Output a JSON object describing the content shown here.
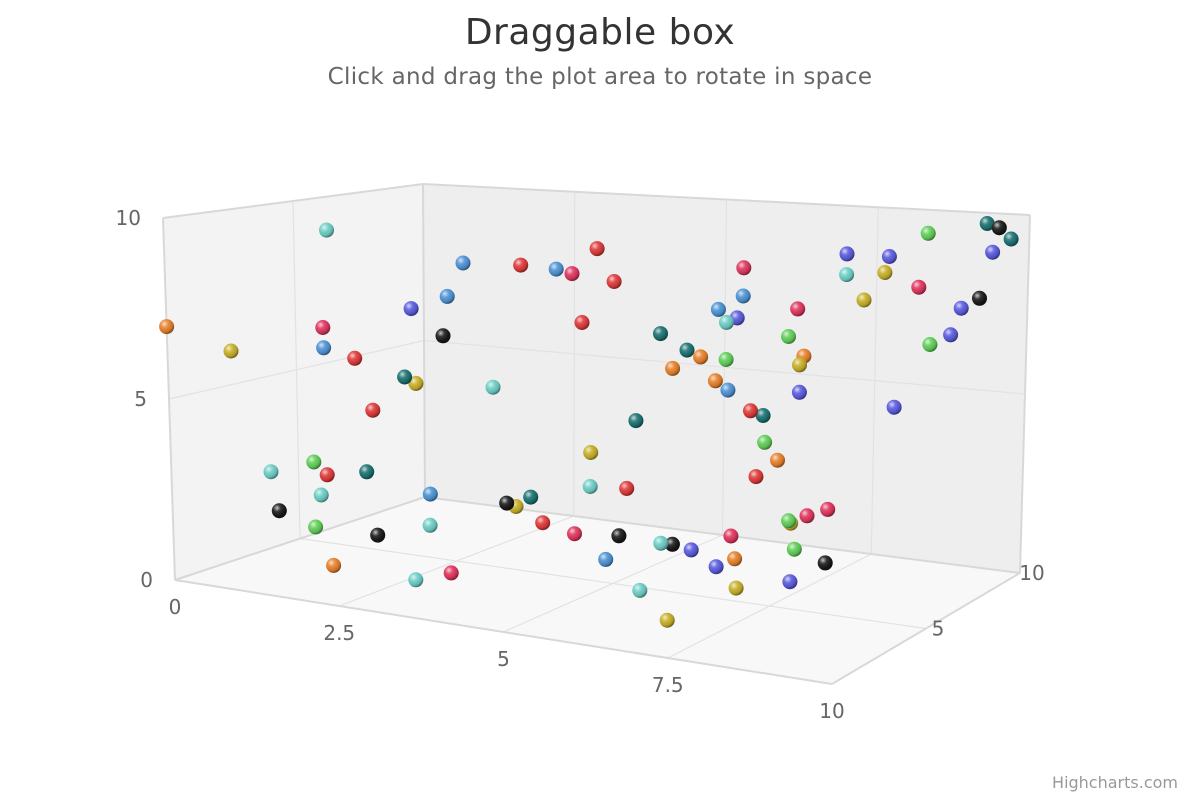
{
  "title": "Draggable box",
  "subtitle": "Click and drag the plot area to rotate in space",
  "credits": "Highcharts.com",
  "colors": {
    "panel_back": "#eeeeee",
    "panel_side": "#f3f3f3",
    "panel_floor": "#f8f8f8",
    "edge": "#d8d8d8",
    "grid": "#e2e2e2",
    "palette": [
      "#7cb5ec",
      "#434348",
      "#90ed7d",
      "#f7a35c",
      "#8085e9",
      "#f15c80",
      "#e4d354",
      "#2b908f",
      "#f45b5b",
      "#91e8e1"
    ]
  },
  "chart_data": {
    "type": "scatter",
    "dimensions": "3d",
    "title": "Draggable box",
    "subtitle": "Click and drag the plot area to rotate in space",
    "xlim": [
      0,
      10
    ],
    "ylim": [
      0,
      10
    ],
    "zlim": [
      0,
      10
    ],
    "x_ticks": [
      "0",
      "2.5",
      "5",
      "7.5",
      "10"
    ],
    "y_ticks": [
      "0",
      "5",
      "10"
    ],
    "z_ticks": [
      "5",
      "10"
    ],
    "grid": true,
    "legend": "none",
    "points": [
      {
        "x": 0,
        "y": 7,
        "z": 0,
        "color": "#e8822c"
      },
      {
        "x": 0.5,
        "y": 6.3,
        "z": 1.2,
        "color": "#c9b12a"
      },
      {
        "x": 0.6,
        "y": 9.3,
        "z": 4.8,
        "color": "#6fd0c8"
      },
      {
        "x": 1.8,
        "y": 7.3,
        "z": 1.5,
        "color": "#e0365f"
      },
      {
        "x": 1.5,
        "y": 6.5,
        "z": 2.3,
        "color": "#4f94d6"
      },
      {
        "x": 1.4,
        "y": 5.9,
        "z": 3.8,
        "color": "#e03a3a"
      },
      {
        "x": 2.1,
        "y": 5.5,
        "z": 4.0,
        "color": "#1c7272"
      },
      {
        "x": 2.2,
        "y": 5.3,
        "z": 4.2,
        "color": "#c9b12a"
      },
      {
        "x": 1.2,
        "y": 4.1,
        "z": 5.0,
        "color": "#e03a3a"
      },
      {
        "x": 1.1,
        "y": 3.1,
        "z": 1.1,
        "color": "#6fd0c8"
      },
      {
        "x": 1.4,
        "y": 2.2,
        "z": 0.6,
        "color": "#1a1a1a"
      },
      {
        "x": 1.8,
        "y": 3.6,
        "z": 1.0,
        "color": "#62d05a"
      },
      {
        "x": 2.0,
        "y": 3.3,
        "z": 1.0,
        "color": "#e03a3a"
      },
      {
        "x": 2.2,
        "y": 3.2,
        "z": 2.1,
        "color": "#1c7272"
      },
      {
        "x": 1.9,
        "y": 2.7,
        "z": 1.0,
        "color": "#6fd0c8"
      },
      {
        "x": 1.5,
        "y": 1.5,
        "z": 1.8,
        "color": "#62d05a"
      },
      {
        "x": 2.2,
        "y": 1.3,
        "z": 2.5,
        "color": "#1a1a1a"
      },
      {
        "x": 2.1,
        "y": 0.8,
        "z": 0.9,
        "color": "#e8822c"
      },
      {
        "x": 2.7,
        "y": 8.8,
        "z": 4.9,
        "color": "#4f94d6"
      },
      {
        "x": 3.0,
        "y": 8.5,
        "z": 6.5,
        "color": "#e03a3a"
      },
      {
        "x": 3.3,
        "y": 8.3,
        "z": 7.2,
        "color": "#4f94d6"
      },
      {
        "x": 3.5,
        "y": 8.7,
        "z": 8.4,
        "color": "#e03a3a"
      },
      {
        "x": 3.4,
        "y": 8.1,
        "z": 7.6,
        "color": "#e0365f"
      },
      {
        "x": 3.7,
        "y": 7.7,
        "z": 8.6,
        "color": "#e03a3a"
      },
      {
        "x": 3.6,
        "y": 6.7,
        "z": 7.5,
        "color": "#e03a3a"
      },
      {
        "x": 2.9,
        "y": 7.0,
        "z": 3.5,
        "color": "#1a1a1a"
      },
      {
        "x": 2.6,
        "y": 7.8,
        "z": 3.0,
        "color": "#5c5ce0"
      },
      {
        "x": 2.9,
        "y": 8.1,
        "z": 3.7,
        "color": "#4f94d6"
      },
      {
        "x": 3.3,
        "y": 5.4,
        "z": 4.5,
        "color": "#6fd0c8"
      },
      {
        "x": 4.0,
        "y": 3.1,
        "z": 6.8,
        "color": "#c9b12a"
      },
      {
        "x": 3.4,
        "y": 1.9,
        "z": 5.8,
        "color": "#1c7272"
      },
      {
        "x": 3.2,
        "y": 1.8,
        "z": 5.3,
        "color": "#1a1a1a"
      },
      {
        "x": 3.2,
        "y": 1.6,
        "z": 5.7,
        "color": "#c9b12a"
      },
      {
        "x": 2.7,
        "y": 2.4,
        "z": 3.4,
        "color": "#4f94d6"
      },
      {
        "x": 2.8,
        "y": 1.6,
        "z": 3.1,
        "color": "#6fd0c8"
      },
      {
        "x": 3.0,
        "y": 0.4,
        "z": 1.9,
        "color": "#6fd0c8"
      },
      {
        "x": 3.3,
        "y": 0.5,
        "z": 2.6,
        "color": "#e0365f"
      },
      {
        "x": 3.7,
        "y": 1.3,
        "z": 5.5,
        "color": "#e03a3a"
      },
      {
        "x": 4.1,
        "y": 2.2,
        "z": 6.5,
        "color": "#6fd0c8"
      },
      {
        "x": 4.4,
        "y": 3.9,
        "z": 7.7,
        "color": "#1c7272"
      },
      {
        "x": 4.1,
        "y": 1.0,
        "z": 5.8,
        "color": "#e0365f"
      },
      {
        "x": 4.4,
        "y": 2.0,
        "z": 7.3,
        "color": "#e03a3a"
      },
      {
        "x": 4.6,
        "y": 0.9,
        "z": 6.4,
        "color": "#1a1a1a"
      },
      {
        "x": 4.5,
        "y": 6.3,
        "z": 8.5,
        "color": "#1c7272"
      },
      {
        "x": 4.7,
        "y": 5.3,
        "z": 8.5,
        "color": "#e8822c"
      },
      {
        "x": 4.6,
        "y": 5.6,
        "z": 9.4,
        "color": "#1c7272"
      },
      {
        "x": 4.9,
        "y": 5.5,
        "z": 9.2,
        "color": "#e8822c"
      },
      {
        "x": 5.1,
        "y": 5.3,
        "z": 9.8,
        "color": "#62d05a"
      },
      {
        "x": 5.0,
        "y": 4.7,
        "z": 9.6,
        "color": "#e8822c"
      },
      {
        "x": 5.0,
        "y": 6.8,
        "z": 9.7,
        "color": "#4f94d6"
      },
      {
        "x": 5.2,
        "y": 6.5,
        "z": 10,
        "color": "#5c5ce0"
      },
      {
        "x": 5.3,
        "y": 8.0,
        "z": 10,
        "color": "#e0365f"
      },
      {
        "x": 5.7,
        "y": 7.5,
        "z": 8.9,
        "color": "#4f94d6"
      },
      {
        "x": 5.9,
        "y": 7.1,
        "z": 7.6,
        "color": "#6fd0c8"
      },
      {
        "x": 5.5,
        "y": 0.9,
        "z": 6.3,
        "color": "#1a1a1a"
      },
      {
        "x": 5.7,
        "y": 0.7,
        "z": 6.6,
        "color": "#5c5ce0"
      },
      {
        "x": 5.2,
        "y": 1.0,
        "z": 4.1,
        "color": "#4f94d6"
      },
      {
        "x": 5.8,
        "y": 1.4,
        "z": 4.9,
        "color": "#6fd0c8"
      },
      {
        "x": 6.1,
        "y": 1.0,
        "z": 7.3,
        "color": "#e0365f"
      },
      {
        "x": 5.8,
        "y": 2.1,
        "z": 9.3,
        "color": "#e03a3a"
      },
      {
        "x": 5.9,
        "y": 3.1,
        "z": 9.4,
        "color": "#62d05a"
      },
      {
        "x": 6.5,
        "y": 4.7,
        "z": 9.3,
        "color": "#5c5ce0"
      },
      {
        "x": 6.4,
        "y": 2.9,
        "z": 8.6,
        "color": "#e8822c"
      },
      {
        "x": 6.8,
        "y": 1.4,
        "z": 8.0,
        "color": "#62d05a"
      },
      {
        "x": 6.8,
        "y": 1.3,
        "z": 8.1,
        "color": "#c9b12a"
      },
      {
        "x": 7.0,
        "y": 1.5,
        "z": 8.3,
        "color": "#e0365f"
      },
      {
        "x": 7.1,
        "y": 1.5,
        "z": 9.0,
        "color": "#e0365f"
      },
      {
        "x": 6.9,
        "y": 0.6,
        "z": 8.0,
        "color": "#62d05a"
      },
      {
        "x": 6.3,
        "y": 0.5,
        "z": 6.9,
        "color": "#e8822c"
      },
      {
        "x": 6.0,
        "y": 0.2,
        "z": 6.9,
        "color": "#5c5ce0"
      },
      {
        "x": 5.6,
        "y": 0.1,
        "z": 4.5,
        "color": "#6fd0c8"
      },
      {
        "x": 6.6,
        "y": 5.8,
        "z": 9.2,
        "color": "#e8822c"
      },
      {
        "x": 6.6,
        "y": 5.6,
        "z": 9.0,
        "color": "#c9b12a"
      },
      {
        "x": 6.4,
        "y": 4.4,
        "z": 7.9,
        "color": "#1c7272"
      },
      {
        "x": 6.3,
        "y": 4.6,
        "z": 7.6,
        "color": "#e03a3a"
      },
      {
        "x": 6.0,
        "y": 5.2,
        "z": 7.4,
        "color": "#4f94d6"
      },
      {
        "x": 6.2,
        "y": 6.2,
        "z": 9.6,
        "color": "#62d05a"
      },
      {
        "x": 6.2,
        "y": 6.9,
        "z": 10,
        "color": "#e0365f"
      },
      {
        "x": 7.0,
        "y": 8.6,
        "z": 10,
        "color": "#5c5ce0"
      },
      {
        "x": 7.0,
        "y": 8.0,
        "z": 10,
        "color": "#6fd0c8"
      },
      {
        "x": 7.7,
        "y": 8.6,
        "z": 10,
        "color": "#5c5ce0"
      },
      {
        "x": 7.7,
        "y": 8.2,
        "z": 9.8,
        "color": "#c9b12a"
      },
      {
        "x": 7.4,
        "y": 7.4,
        "z": 9.7,
        "color": "#c9b12a"
      },
      {
        "x": 8.4,
        "y": 9.4,
        "z": 9.8,
        "color": "#62d05a"
      },
      {
        "x": 8.6,
        "y": 8.2,
        "z": 8.8,
        "color": "#e0365f"
      },
      {
        "x": 9.3,
        "y": 9.7,
        "z": 10,
        "color": "#1c7272"
      },
      {
        "x": 9.5,
        "y": 9.6,
        "z": 10,
        "color": "#1a1a1a"
      },
      {
        "x": 9.4,
        "y": 8.9,
        "z": 10,
        "color": "#5c5ce0"
      },
      {
        "x": 9.7,
        "y": 9.3,
        "z": 10,
        "color": "#1c7272"
      },
      {
        "x": 9.4,
        "y": 7.8,
        "z": 9.4,
        "color": "#1a1a1a"
      },
      {
        "x": 9.3,
        "y": 7.7,
        "z": 8.8,
        "color": "#5c5ce0"
      },
      {
        "x": 9.2,
        "y": 7.0,
        "z": 8.6,
        "color": "#5c5ce0"
      },
      {
        "x": 8.8,
        "y": 6.6,
        "z": 8.8,
        "color": "#62d05a"
      },
      {
        "x": 8.4,
        "y": 4.9,
        "z": 8.3,
        "color": "#5c5ce0"
      },
      {
        "x": 8.0,
        "y": 1.0,
        "z": 6.2,
        "color": "#1a1a1a"
      },
      {
        "x": 7.5,
        "y": 0.4,
        "z": 6.0,
        "color": "#5c5ce0"
      },
      {
        "x": 6.9,
        "y": 0.3,
        "z": 5.2,
        "color": "#c9b12a"
      },
      {
        "x": 6.6,
        "y": 0.0,
        "z": 2.8,
        "color": "#c9b12a"
      }
    ]
  }
}
